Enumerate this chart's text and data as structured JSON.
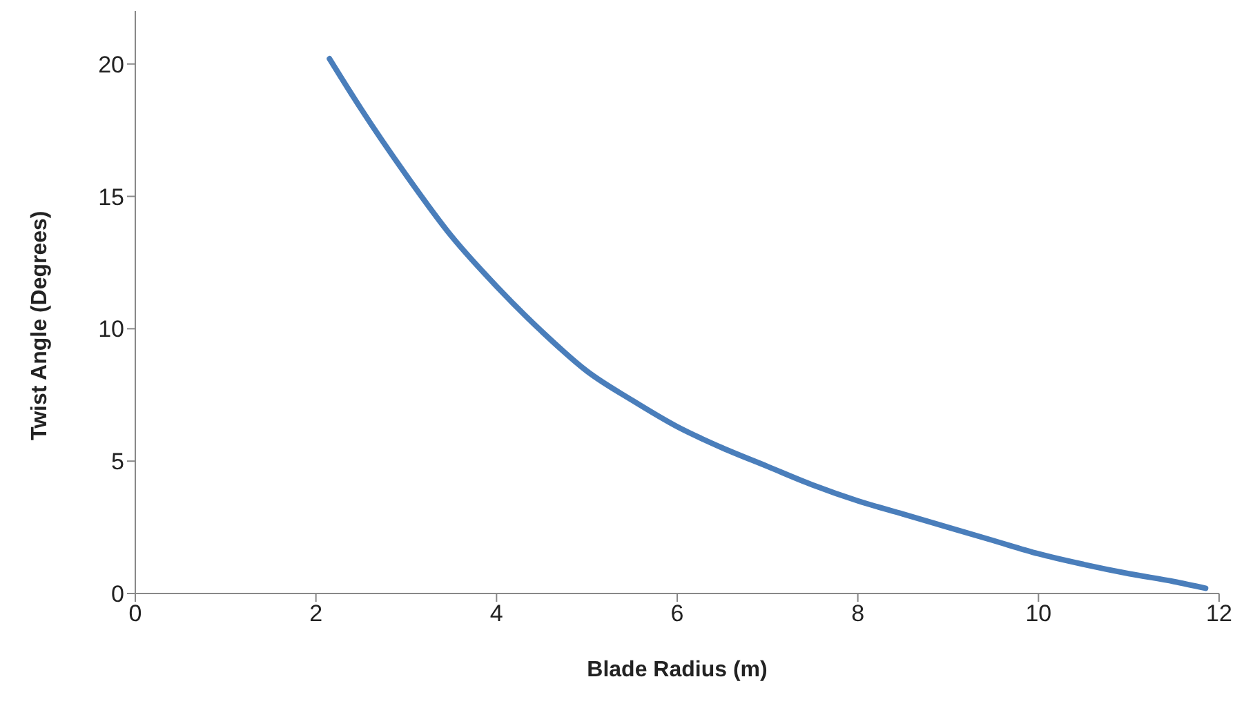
{
  "chart_data": {
    "type": "line",
    "xlabel": "Blade Radius (m)",
    "ylabel": "Twist Angle (Degrees)",
    "xlim": [
      0,
      12
    ],
    "xticks": [
      0,
      2,
      4,
      6,
      8,
      10,
      12
    ],
    "ylim": [
      0,
      22
    ],
    "yticks": [
      0,
      5,
      10,
      15,
      20
    ],
    "grid": false,
    "legend": false,
    "marker": "none",
    "line_style": "solid",
    "series": [
      {
        "color": "#4a7ebb",
        "x": [
          2.15,
          2.5,
          3,
          3.5,
          4,
          4.5,
          5,
          5.5,
          6,
          6.5,
          7,
          7.5,
          8,
          8.5,
          9,
          9.5,
          10,
          10.5,
          11,
          11.5,
          11.85
        ],
        "values": [
          20.2,
          18.3,
          15.8,
          13.5,
          11.6,
          9.9,
          8.4,
          7.3,
          6.3,
          5.5,
          4.8,
          4.1,
          3.5,
          3.0,
          2.5,
          2.0,
          1.5,
          1.1,
          0.75,
          0.45,
          0.2
        ]
      }
    ]
  }
}
